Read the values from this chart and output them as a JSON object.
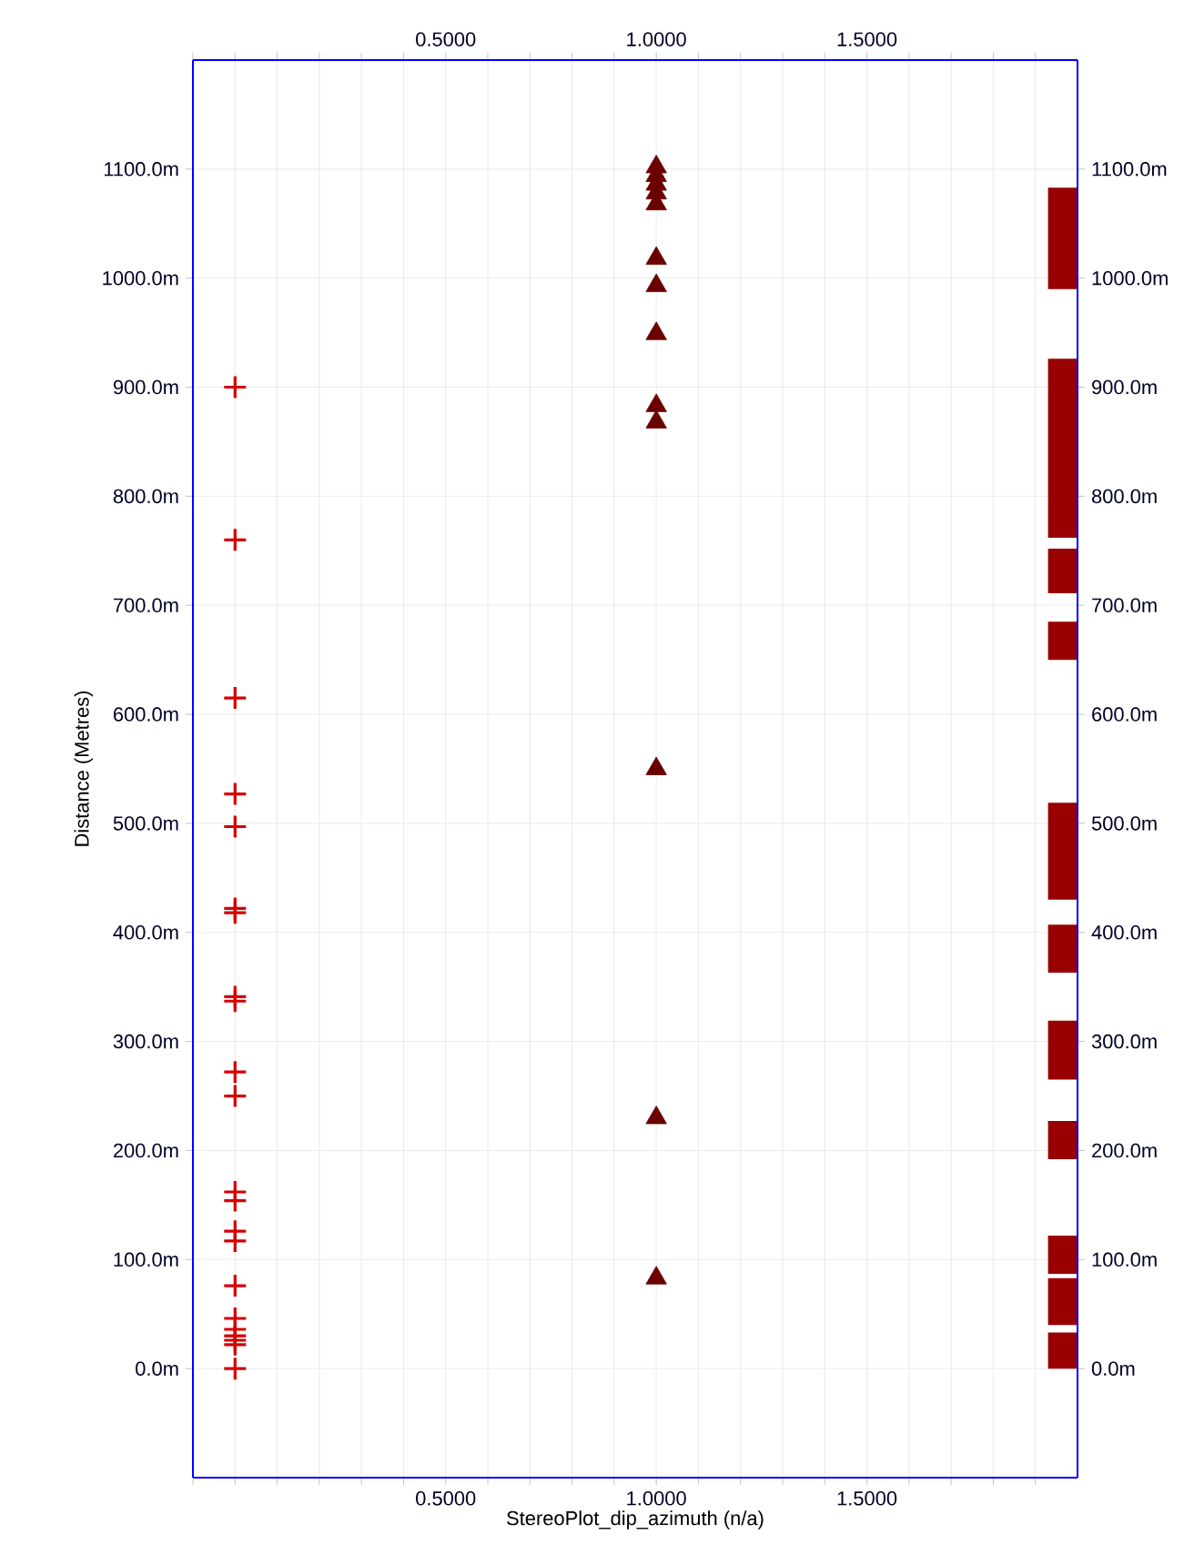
{
  "chart_data": {
    "type": "scatter",
    "xlabel": "StereoPlot_dip_azimuth (n/a)",
    "ylabel": "Distance (Metres)",
    "xlim": [
      -0.1,
      2.0
    ],
    "ylim": [
      -100,
      1200
    ],
    "x2lim": [
      -0.1,
      2.0
    ],
    "y2lim": [
      -100,
      1200
    ],
    "xticks": [
      {
        "value": -0.1,
        "label": null
      },
      {
        "value": 0.0,
        "label": null
      },
      {
        "value": 0.1,
        "label": null
      },
      {
        "value": 0.2,
        "label": null
      },
      {
        "value": 0.3,
        "label": null
      },
      {
        "value": 0.4,
        "label": null
      },
      {
        "value": 0.5,
        "label": "0.5000"
      },
      {
        "value": 0.6,
        "label": null
      },
      {
        "value": 0.7,
        "label": null
      },
      {
        "value": 0.8,
        "label": null
      },
      {
        "value": 0.9,
        "label": null
      },
      {
        "value": 1.0,
        "label": "1.0000"
      },
      {
        "value": 1.1,
        "label": null
      },
      {
        "value": 1.2,
        "label": null
      },
      {
        "value": 1.3,
        "label": null
      },
      {
        "value": 1.4,
        "label": null
      },
      {
        "value": 1.5,
        "label": "1.5000"
      },
      {
        "value": 1.6,
        "label": null
      },
      {
        "value": 1.7,
        "label": null
      },
      {
        "value": 1.8,
        "label": null
      },
      {
        "value": 1.9,
        "label": null
      }
    ],
    "x2ticks": [
      {
        "value": -0.1,
        "label": null
      },
      {
        "value": 0.0,
        "label": null
      },
      {
        "value": 0.1,
        "label": null
      },
      {
        "value": 0.2,
        "label": null
      },
      {
        "value": 0.3,
        "label": null
      },
      {
        "value": 0.4,
        "label": null
      },
      {
        "value": 0.5,
        "label": "0.5000"
      },
      {
        "value": 0.6,
        "label": null
      },
      {
        "value": 0.7,
        "label": null
      },
      {
        "value": 0.8,
        "label": null
      },
      {
        "value": 0.9,
        "label": null
      },
      {
        "value": 1.0,
        "label": "1.0000"
      },
      {
        "value": 1.1,
        "label": null
      },
      {
        "value": 1.2,
        "label": null
      },
      {
        "value": 1.3,
        "label": null
      },
      {
        "value": 1.4,
        "label": null
      },
      {
        "value": 1.5,
        "label": "1.5000"
      },
      {
        "value": 1.6,
        "label": null
      },
      {
        "value": 1.7,
        "label": null
      },
      {
        "value": 1.8,
        "label": null
      },
      {
        "value": 1.9,
        "label": null
      }
    ],
    "yticks": [
      {
        "value": 0,
        "label": "0.0m"
      },
      {
        "value": 100,
        "label": "100.0m"
      },
      {
        "value": 200,
        "label": "200.0m"
      },
      {
        "value": 300,
        "label": "300.0m"
      },
      {
        "value": 400,
        "label": "400.0m"
      },
      {
        "value": 500,
        "label": "500.0m"
      },
      {
        "value": 600,
        "label": "600.0m"
      },
      {
        "value": 700,
        "label": "700.0m"
      },
      {
        "value": 800,
        "label": "800.0m"
      },
      {
        "value": 900,
        "label": "900.0m"
      },
      {
        "value": 1000,
        "label": "1000.0m"
      },
      {
        "value": 1100,
        "label": "1100.0m"
      }
    ],
    "y2ticks": [
      {
        "value": 0,
        "label": "0.0m"
      },
      {
        "value": 100,
        "label": "100.0m"
      },
      {
        "value": 200,
        "label": "200.0m"
      },
      {
        "value": 300,
        "label": "300.0m"
      },
      {
        "value": 400,
        "label": "400.0m"
      },
      {
        "value": 500,
        "label": "500.0m"
      },
      {
        "value": 600,
        "label": "600.0m"
      },
      {
        "value": 700,
        "label": "700.0m"
      },
      {
        "value": 800,
        "label": "800.0m"
      },
      {
        "value": 900,
        "label": "900.0m"
      },
      {
        "value": 1000,
        "label": "1000.0m"
      },
      {
        "value": 1100,
        "label": "1100.0m"
      }
    ],
    "grid": true,
    "series": [
      {
        "marker": "cross",
        "color": "#d40000",
        "x": [
          0,
          0,
          0,
          0,
          0,
          0,
          0,
          0,
          0,
          0,
          0,
          0,
          0,
          0,
          0,
          0,
          0,
          0,
          0,
          0,
          0,
          0
        ],
        "values": [
          0,
          22,
          26,
          30,
          36,
          46,
          76,
          117,
          126,
          154,
          162,
          250,
          272,
          337,
          341,
          418,
          422,
          497,
          527,
          615,
          760,
          900
        ]
      },
      {
        "marker": "triangle",
        "color": "#6b0000",
        "x": [
          1,
          1,
          1,
          1,
          1,
          1,
          1,
          1,
          1,
          1,
          1,
          1,
          1
        ],
        "values": [
          83,
          230,
          550,
          868,
          883,
          949,
          993,
          1018,
          1068,
          1078,
          1086,
          1094,
          1102
        ]
      },
      {
        "type": "bar",
        "color": "#990000",
        "x": [
          1.965
        ],
        "base": [
          0
        ],
        "values": [
          33
        ]
      },
      {
        "type": "bar",
        "color": "#990000",
        "x": [
          1.965
        ],
        "base": [
          40
        ],
        "values": [
          43
        ]
      },
      {
        "type": "bar",
        "color": "#990000",
        "x": [
          1.965
        ],
        "base": [
          87
        ],
        "values": [
          35
        ]
      },
      {
        "type": "bar",
        "color": "#990000",
        "x": [
          1.965
        ],
        "base": [
          192
        ],
        "values": [
          35
        ]
      },
      {
        "type": "bar",
        "color": "#990000",
        "x": [
          1.965
        ],
        "base": [
          265
        ],
        "values": [
          54
        ]
      },
      {
        "type": "bar",
        "color": "#990000",
        "x": [
          1.965
        ],
        "base": [
          363
        ],
        "values": [
          44
        ]
      },
      {
        "type": "bar",
        "color": "#990000",
        "x": [
          1.965
        ],
        "base": [
          430
        ],
        "values": [
          89
        ]
      },
      {
        "type": "bar",
        "color": "#990000",
        "x": [
          1.965
        ],
        "base": [
          650
        ],
        "values": [
          35
        ]
      },
      {
        "type": "bar",
        "color": "#990000",
        "x": [
          1.965
        ],
        "base": [
          711
        ],
        "values": [
          41
        ]
      },
      {
        "type": "bar",
        "color": "#990000",
        "x": [
          1.965
        ],
        "base": [
          762
        ],
        "values": [
          164
        ]
      },
      {
        "type": "bar",
        "color": "#990000",
        "x": [
          1.965
        ],
        "base": [
          990
        ],
        "values": [
          93
        ]
      }
    ]
  }
}
